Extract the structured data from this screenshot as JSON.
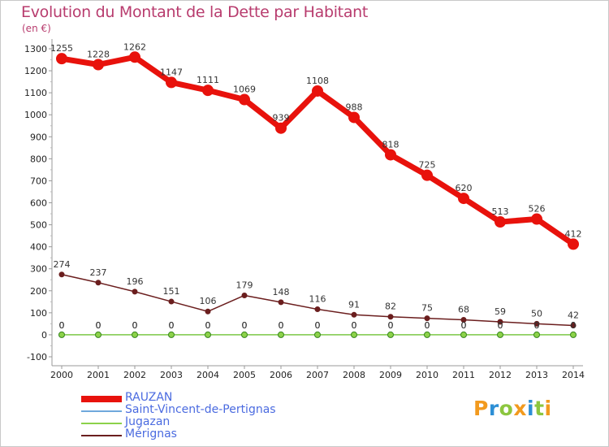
{
  "header": {
    "title": "Evolution du Montant de la Dette par Habitant",
    "subtitle": "(en €)"
  },
  "logo": {
    "letters": [
      "P",
      "r",
      "o",
      "x",
      "i",
      "t",
      "i"
    ],
    "colors": [
      "#f29a1e",
      "#2d8fd5",
      "#8cc63f",
      "#f29a1e",
      "#2d8fd5",
      "#8cc63f",
      "#f29a1e"
    ]
  },
  "chart_data": {
    "type": "line",
    "x": [
      "2000",
      "2001",
      "2002",
      "2003",
      "2004",
      "2005",
      "2006",
      "2007",
      "2008",
      "2009",
      "2010",
      "2011",
      "2012",
      "2013",
      "2014"
    ],
    "ylim": [
      -100,
      1300
    ],
    "yticks": [
      -100,
      0,
      100,
      200,
      300,
      400,
      500,
      600,
      700,
      800,
      900,
      1000,
      1100,
      1200,
      1300
    ],
    "grid": false,
    "legend_position": "bottom-left",
    "series": [
      {
        "name": "RAUZAN",
        "color": "#e8120c",
        "values": [
          1255,
          1228,
          1262,
          1147,
          1111,
          1069,
          939,
          1108,
          988,
          818,
          725,
          620,
          513,
          526,
          412
        ],
        "labels": [
          "1255",
          "1228",
          "1262",
          "1147",
          "1111",
          "1069",
          "939",
          "1108",
          "988",
          "818",
          "725",
          "620",
          "513",
          "526",
          "412"
        ]
      },
      {
        "name": "Saint-Vincent-de-Pertignas",
        "color": "#6fa8dc",
        "values": [
          0,
          0,
          0,
          0,
          0,
          0,
          0,
          0,
          0,
          0,
          0,
          0,
          0,
          0,
          0
        ],
        "labels": [
          "0",
          "0",
          "0",
          "0",
          "0",
          "0",
          "0",
          "0",
          "0",
          "0",
          "0",
          "0",
          "0",
          "0",
          "0"
        ]
      },
      {
        "name": "Jugazan",
        "color": "#8cd24a",
        "values": [
          0,
          0,
          0,
          0,
          0,
          0,
          0,
          0,
          0,
          0,
          0,
          0,
          0,
          0,
          0
        ],
        "labels": [
          "0",
          "0",
          "0",
          "0",
          "0",
          "0",
          "0",
          "0",
          "0",
          "0",
          "0",
          "0",
          "0",
          "0",
          "0"
        ]
      },
      {
        "name": "Mérignas",
        "color": "#6b1e1e",
        "values": [
          274,
          237,
          196,
          151,
          106,
          179,
          148,
          116,
          91,
          82,
          75,
          68,
          59,
          50,
          42
        ],
        "labels": [
          "274",
          "237",
          "196",
          "151",
          "106",
          "179",
          "148",
          "116",
          "91",
          "82",
          "75",
          "68",
          "59",
          "50",
          "42"
        ]
      }
    ]
  }
}
